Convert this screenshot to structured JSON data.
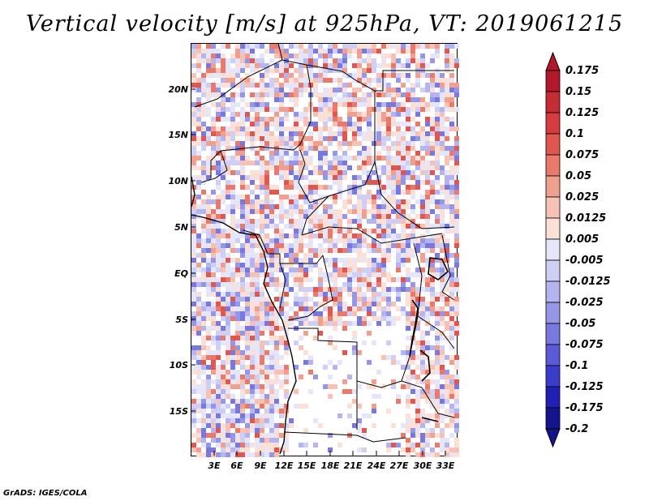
{
  "title": "Vertical velocity [m/s] at 925hPa, VT: 2019061215",
  "credit": "GrADS: IGES/COLA",
  "map": {
    "lat_labels": [
      "20N",
      "15N",
      "10N",
      "5N",
      "EQ",
      "5S",
      "10S",
      "15S"
    ],
    "lon_labels": [
      "3E",
      "6E",
      "9E",
      "12E",
      "15E",
      "18E",
      "21E",
      "24E",
      "27E",
      "30E",
      "33E"
    ],
    "field_colors": {
      "positive": "#e8534c",
      "negative": "#5a5ae6",
      "neutral": "#ffffff"
    }
  },
  "colorbar": {
    "labels": [
      "0.175",
      "0.15",
      "0.125",
      "0.1",
      "0.075",
      "0.05",
      "0.025",
      "0.0125",
      "0.005",
      "-0.005",
      "-0.0125",
      "-0.025",
      "-0.05",
      "-0.075",
      "-0.1",
      "-0.125",
      "-0.175",
      "-0.2"
    ],
    "colors": [
      "#b2182b",
      "#c62a33",
      "#d73a3f",
      "#e0574f",
      "#e97a6b",
      "#f1a08f",
      "#f7c2b4",
      "#fbe0d8",
      "#ffffff",
      "#e6e6fa",
      "#cfcff5",
      "#b4b4f0",
      "#9696e8",
      "#7878df",
      "#5a5ad6",
      "#3c3ccc",
      "#2020b4",
      "#14148c"
    ]
  }
}
